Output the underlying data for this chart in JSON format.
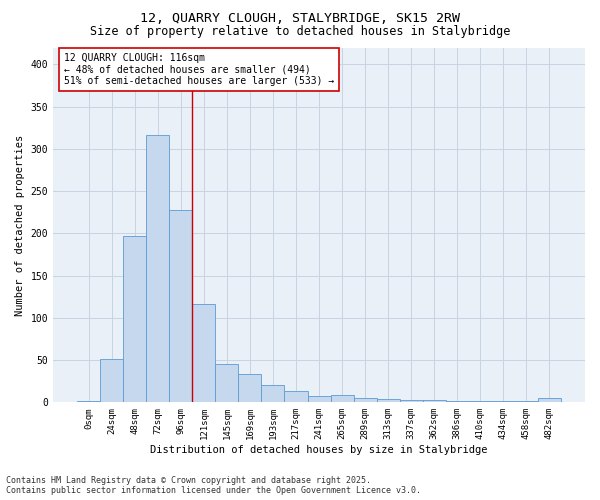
{
  "title_line1": "12, QUARRY CLOUGH, STALYBRIDGE, SK15 2RW",
  "title_line2": "Size of property relative to detached houses in Stalybridge",
  "xlabel": "Distribution of detached houses by size in Stalybridge",
  "ylabel": "Number of detached properties",
  "bar_labels": [
    "0sqm",
    "24sqm",
    "48sqm",
    "72sqm",
    "96sqm",
    "121sqm",
    "145sqm",
    "169sqm",
    "193sqm",
    "217sqm",
    "241sqm",
    "265sqm",
    "289sqm",
    "313sqm",
    "337sqm",
    "362sqm",
    "386sqm",
    "410sqm",
    "434sqm",
    "458sqm",
    "482sqm"
  ],
  "bar_values": [
    2,
    51,
    197,
    316,
    228,
    116,
    45,
    33,
    20,
    13,
    8,
    9,
    5,
    4,
    3,
    3,
    1,
    1,
    1,
    1,
    5
  ],
  "bar_color": "#c5d8ed",
  "bar_edge_color": "#5b9bd5",
  "grid_color": "#c8d4e3",
  "background_color": "#eaf0f8",
  "annotation_line1": "12 QUARRY CLOUGH: 116sqm",
  "annotation_line2": "← 48% of detached houses are smaller (494)",
  "annotation_line3": "51% of semi-detached houses are larger (533) →",
  "annotation_box_color": "#ffffff",
  "annotation_box_edge": "#cc0000",
  "vline_color": "#cc0000",
  "vline_x_index": 5,
  "ylim": [
    0,
    420
  ],
  "yticks": [
    0,
    50,
    100,
    150,
    200,
    250,
    300,
    350,
    400
  ],
  "footer_line1": "Contains HM Land Registry data © Crown copyright and database right 2025.",
  "footer_line2": "Contains public sector information licensed under the Open Government Licence v3.0.",
  "title_fontsize": 9.5,
  "subtitle_fontsize": 8.5,
  "axis_label_fontsize": 7.5,
  "tick_fontsize": 6.5,
  "annotation_fontsize": 7,
  "footer_fontsize": 6
}
